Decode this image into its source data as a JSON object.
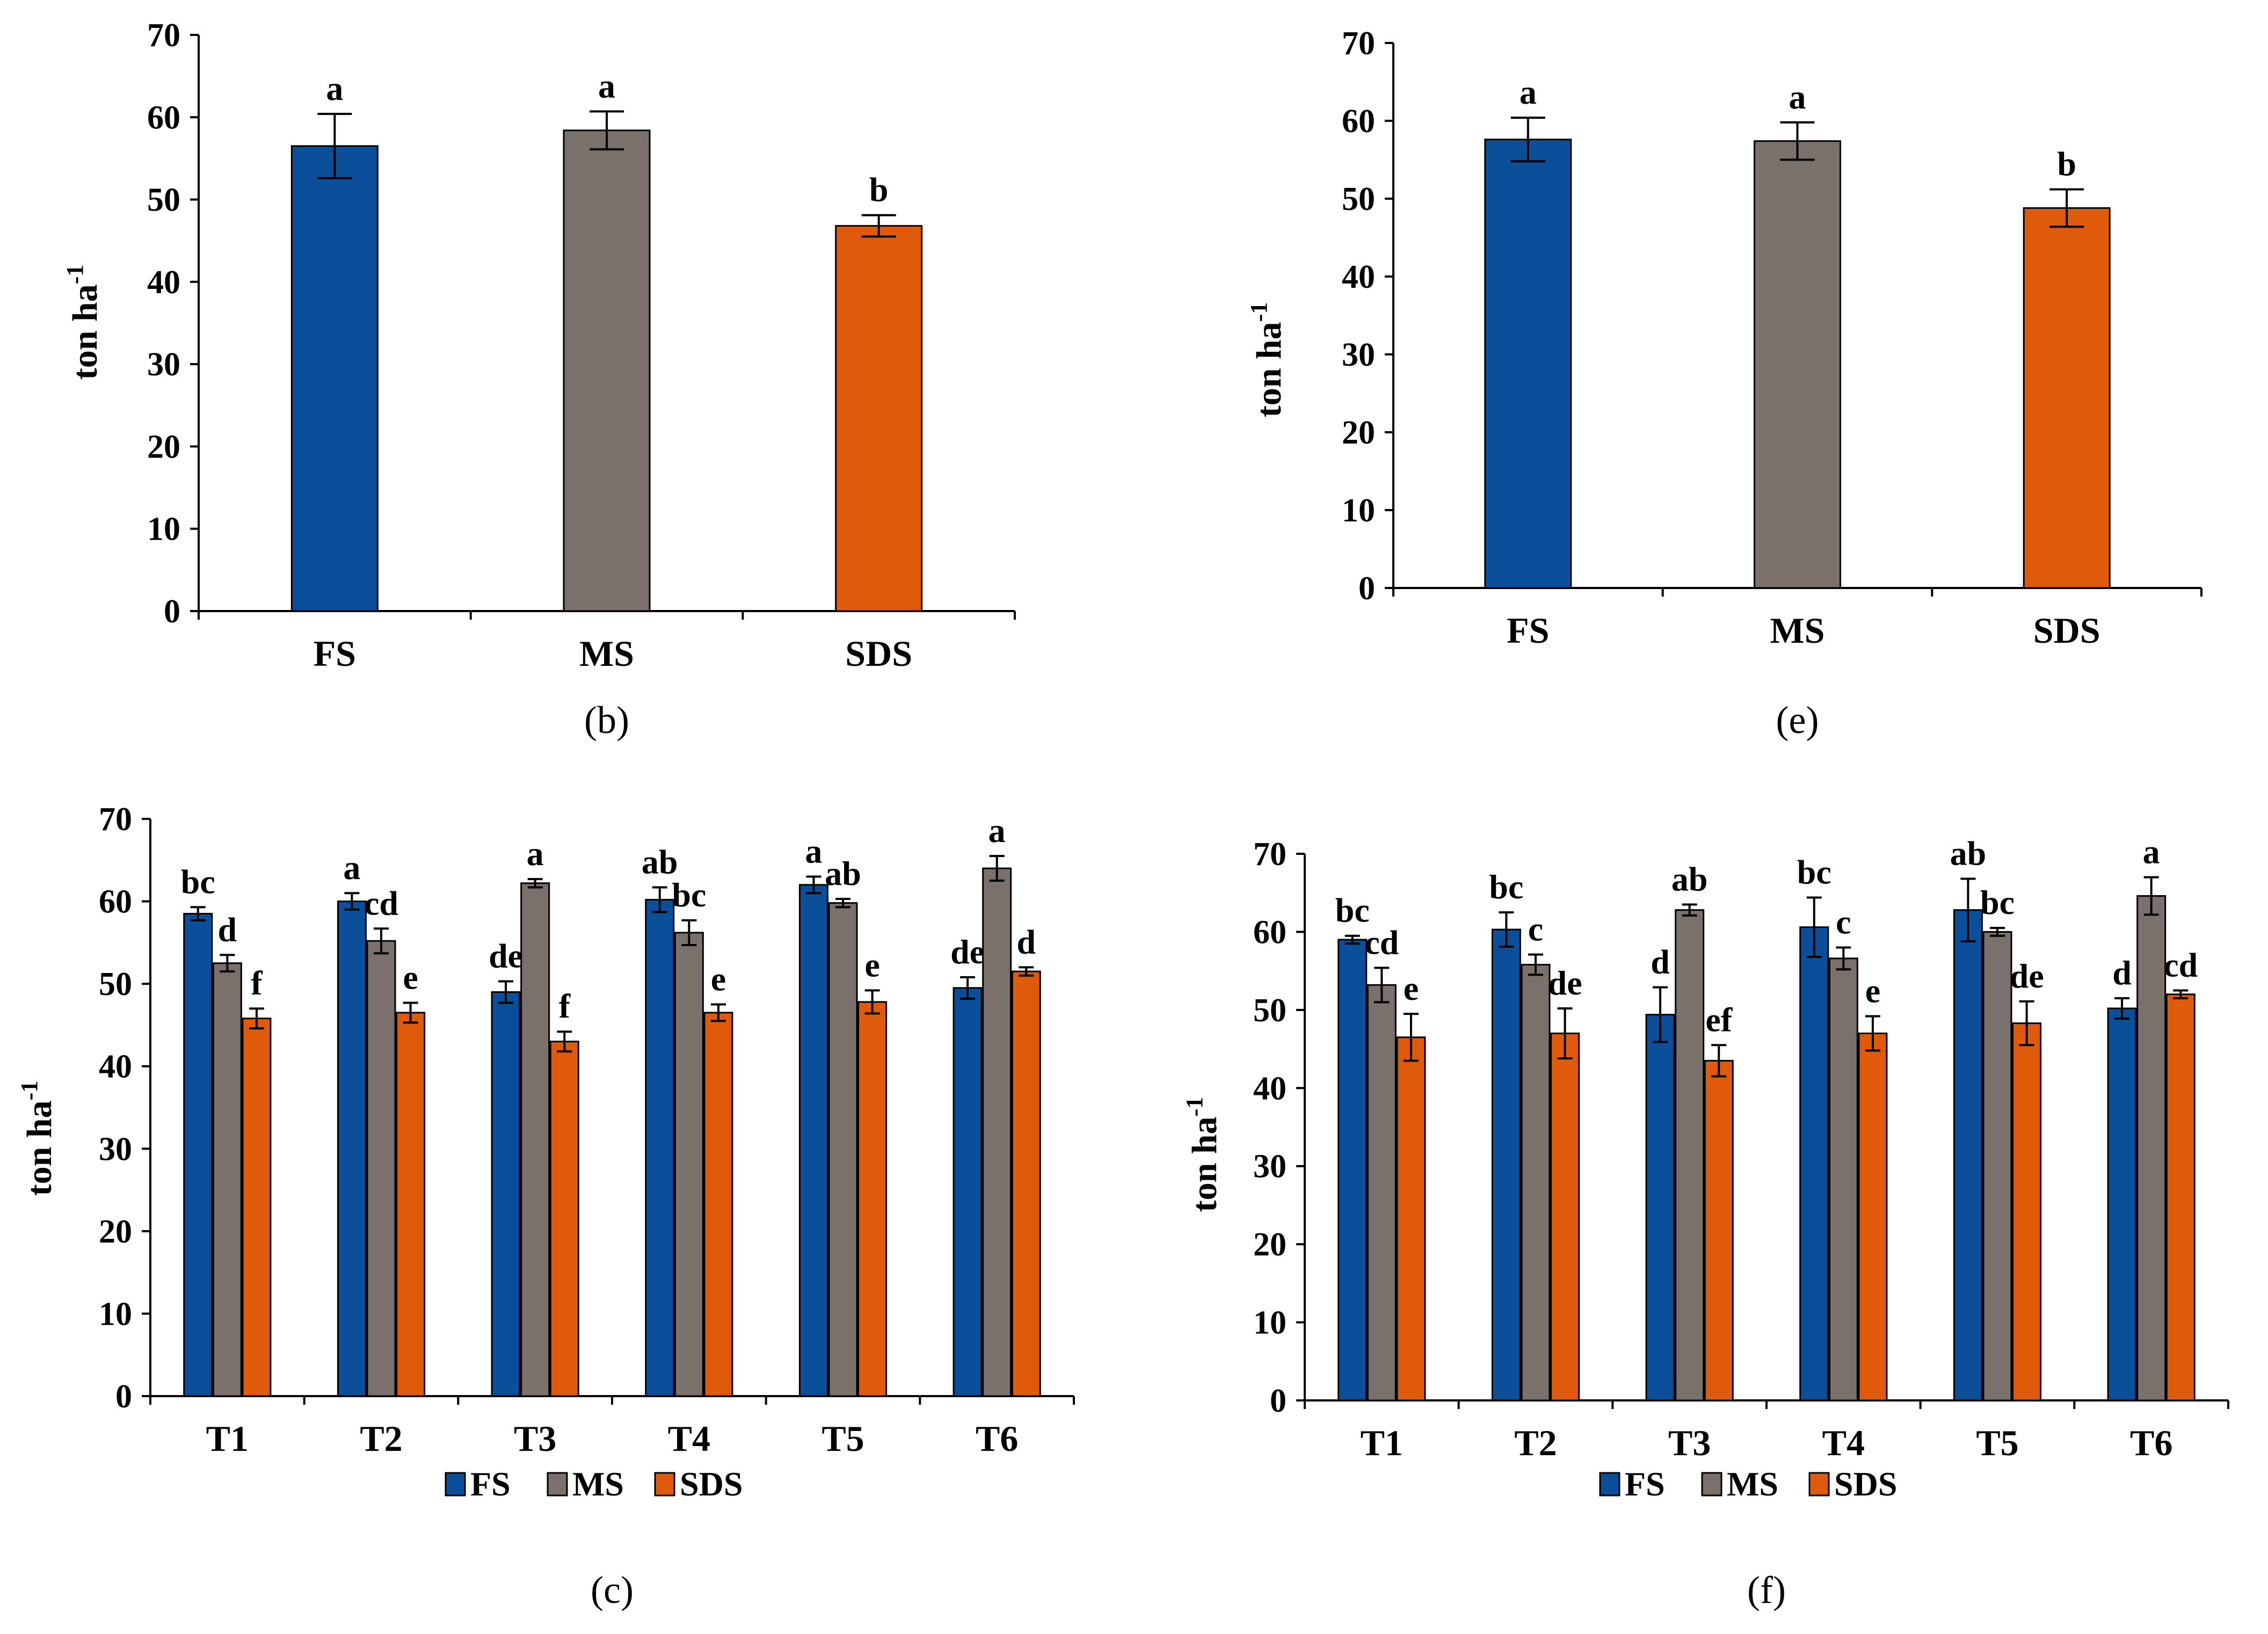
{
  "figure": {
    "y_axis_label": "ton ha",
    "y_axis_label_sup": "-1"
  },
  "colors": {
    "FS": "#0b4f9a",
    "MS": "#7a706c",
    "SDS": "#e05a0c"
  },
  "chart_data": [
    {
      "id": "b",
      "panel_label": "(b)",
      "type": "bar",
      "categories": [
        "FS",
        "MS",
        "SDS"
      ],
      "values": [
        56.5,
        58.4,
        46.8
      ],
      "errors": [
        3.9,
        2.3,
        1.3
      ],
      "letters": [
        "a",
        "a",
        "b"
      ],
      "ylim": [
        0,
        70
      ],
      "yticks": [
        0,
        10,
        20,
        30,
        40,
        50,
        60,
        70
      ],
      "ylabel": "ton ha-1"
    },
    {
      "id": "e",
      "panel_label": "(e)",
      "type": "bar",
      "categories": [
        "FS",
        "MS",
        "SDS"
      ],
      "values": [
        57.6,
        57.4,
        48.8
      ],
      "errors": [
        2.8,
        2.4,
        2.4
      ],
      "letters": [
        "a",
        "a",
        "b"
      ],
      "ylim": [
        0,
        70
      ],
      "yticks": [
        0,
        10,
        20,
        30,
        40,
        50,
        60,
        70
      ],
      "ylabel": "ton ha-1"
    },
    {
      "id": "c",
      "panel_label": "(c)",
      "type": "bar",
      "categories": [
        "T1",
        "T2",
        "T3",
        "T4",
        "T5",
        "T6"
      ],
      "legend": [
        "FS",
        "MS",
        "SDS"
      ],
      "series": [
        {
          "name": "FS",
          "values": [
            58.5,
            60.0,
            49.0,
            60.2,
            62.0,
            49.5
          ],
          "errors": [
            0.8,
            1.0,
            1.3,
            1.5,
            1.0,
            1.3
          ],
          "letters": [
            "bc",
            "a",
            "de",
            "ab",
            "a",
            "de"
          ]
        },
        {
          "name": "MS",
          "values": [
            52.5,
            55.2,
            62.2,
            56.2,
            59.8,
            64.0
          ],
          "errors": [
            1.0,
            1.5,
            0.5,
            1.5,
            0.5,
            1.5
          ],
          "letters": [
            "d",
            "cd",
            "a",
            "bc",
            "ab",
            "a"
          ]
        },
        {
          "name": "SDS",
          "values": [
            45.8,
            46.5,
            43.0,
            46.5,
            47.8,
            51.5
          ],
          "errors": [
            1.2,
            1.2,
            1.2,
            1.0,
            1.4,
            0.5
          ],
          "letters": [
            "f",
            "e",
            "f",
            "e",
            "e",
            "d"
          ]
        }
      ],
      "ylim": [
        0,
        70
      ],
      "yticks": [
        0,
        10,
        20,
        30,
        40,
        50,
        60,
        70
      ],
      "ylabel": "ton ha-1"
    },
    {
      "id": "f",
      "panel_label": "(f)",
      "type": "bar",
      "categories": [
        "T1",
        "T2",
        "T3",
        "T4",
        "T5",
        "T6"
      ],
      "legend": [
        "FS",
        "MS",
        "SDS"
      ],
      "series": [
        {
          "name": "FS",
          "values": [
            59.0,
            60.3,
            49.4,
            60.6,
            62.8,
            50.2
          ],
          "errors": [
            0.5,
            2.2,
            3.5,
            3.8,
            4.0,
            1.3
          ],
          "letters": [
            "bc",
            "bc",
            "d",
            "bc",
            "ab",
            "d"
          ]
        },
        {
          "name": "MS",
          "values": [
            53.2,
            55.8,
            62.8,
            56.6,
            60.0,
            64.6
          ],
          "errors": [
            2.2,
            1.3,
            0.7,
            1.4,
            0.5,
            2.4
          ],
          "letters": [
            "cd",
            "c",
            "ab",
            "c",
            "bc",
            "a"
          ]
        },
        {
          "name": "SDS",
          "values": [
            46.5,
            47.0,
            43.5,
            47.0,
            48.3,
            52.0
          ],
          "errors": [
            3.0,
            3.2,
            2.0,
            2.2,
            2.8,
            0.5
          ],
          "letters": [
            "e",
            "de",
            "ef",
            "e",
            "de",
            "cd"
          ]
        }
      ],
      "ylim": [
        0,
        70
      ],
      "yticks": [
        0,
        10,
        20,
        30,
        40,
        50,
        60,
        70
      ],
      "ylabel": "ton ha-1"
    }
  ]
}
